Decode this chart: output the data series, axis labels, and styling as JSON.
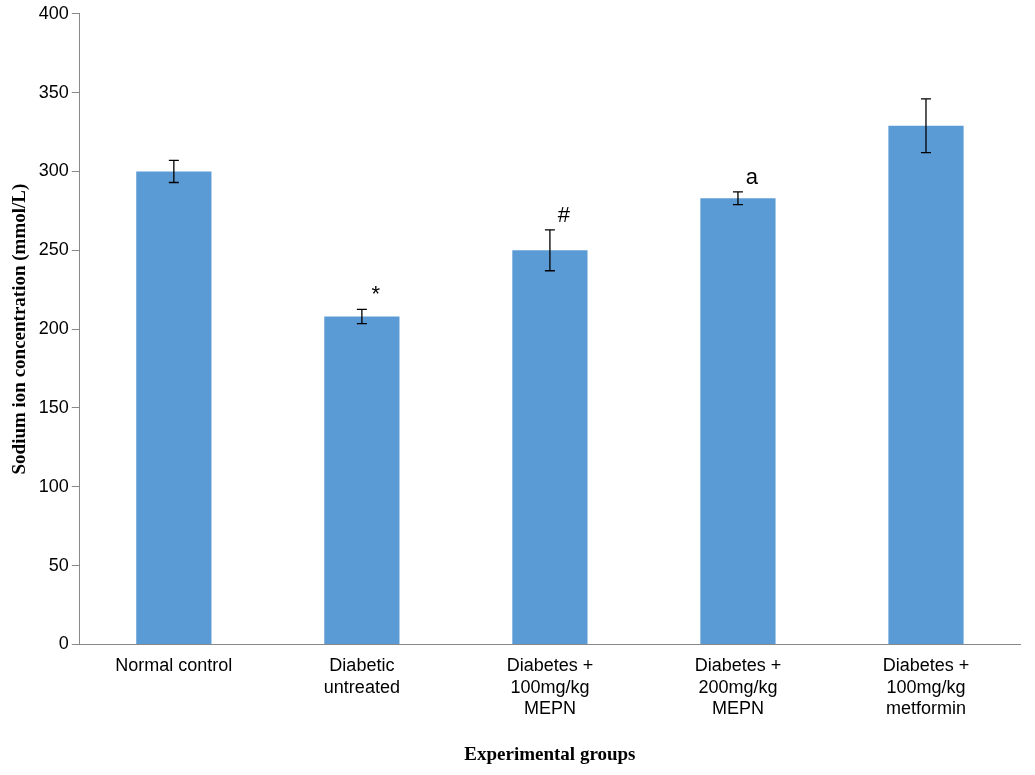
{
  "chart_data": {
    "type": "bar",
    "xlabel": "Experimental groups",
    "ylabel": "Sodium ion concentration (mmol/L)",
    "categories": [
      "Normal control",
      "Diabetic untreated",
      "Diabetes + 100mg/kg MEPN",
      "Diabetes + 200mg/kg MEPN",
      "Diabetes + 100mg/kg metformin"
    ],
    "values": [
      300,
      208,
      250,
      283,
      329
    ],
    "errors": [
      7,
      4.5,
      13,
      4,
      17
    ],
    "color": "#5b9bd5",
    "ylim": [
      0,
      400
    ],
    "yticks": [
      0,
      50,
      100,
      150,
      200,
      250,
      300,
      350,
      400
    ],
    "grid": false,
    "legend": false,
    "annotations": [
      {
        "text": "*",
        "x": "Diabetic untreated",
        "y": 212.5
      },
      {
        "text": "#",
        "x": "Diabetes + 100mg/kg MEPN",
        "y": 263
      },
      {
        "text": "a",
        "x": "Diabetes + 200mg/kg MEPN",
        "y": 287
      }
    ]
  }
}
